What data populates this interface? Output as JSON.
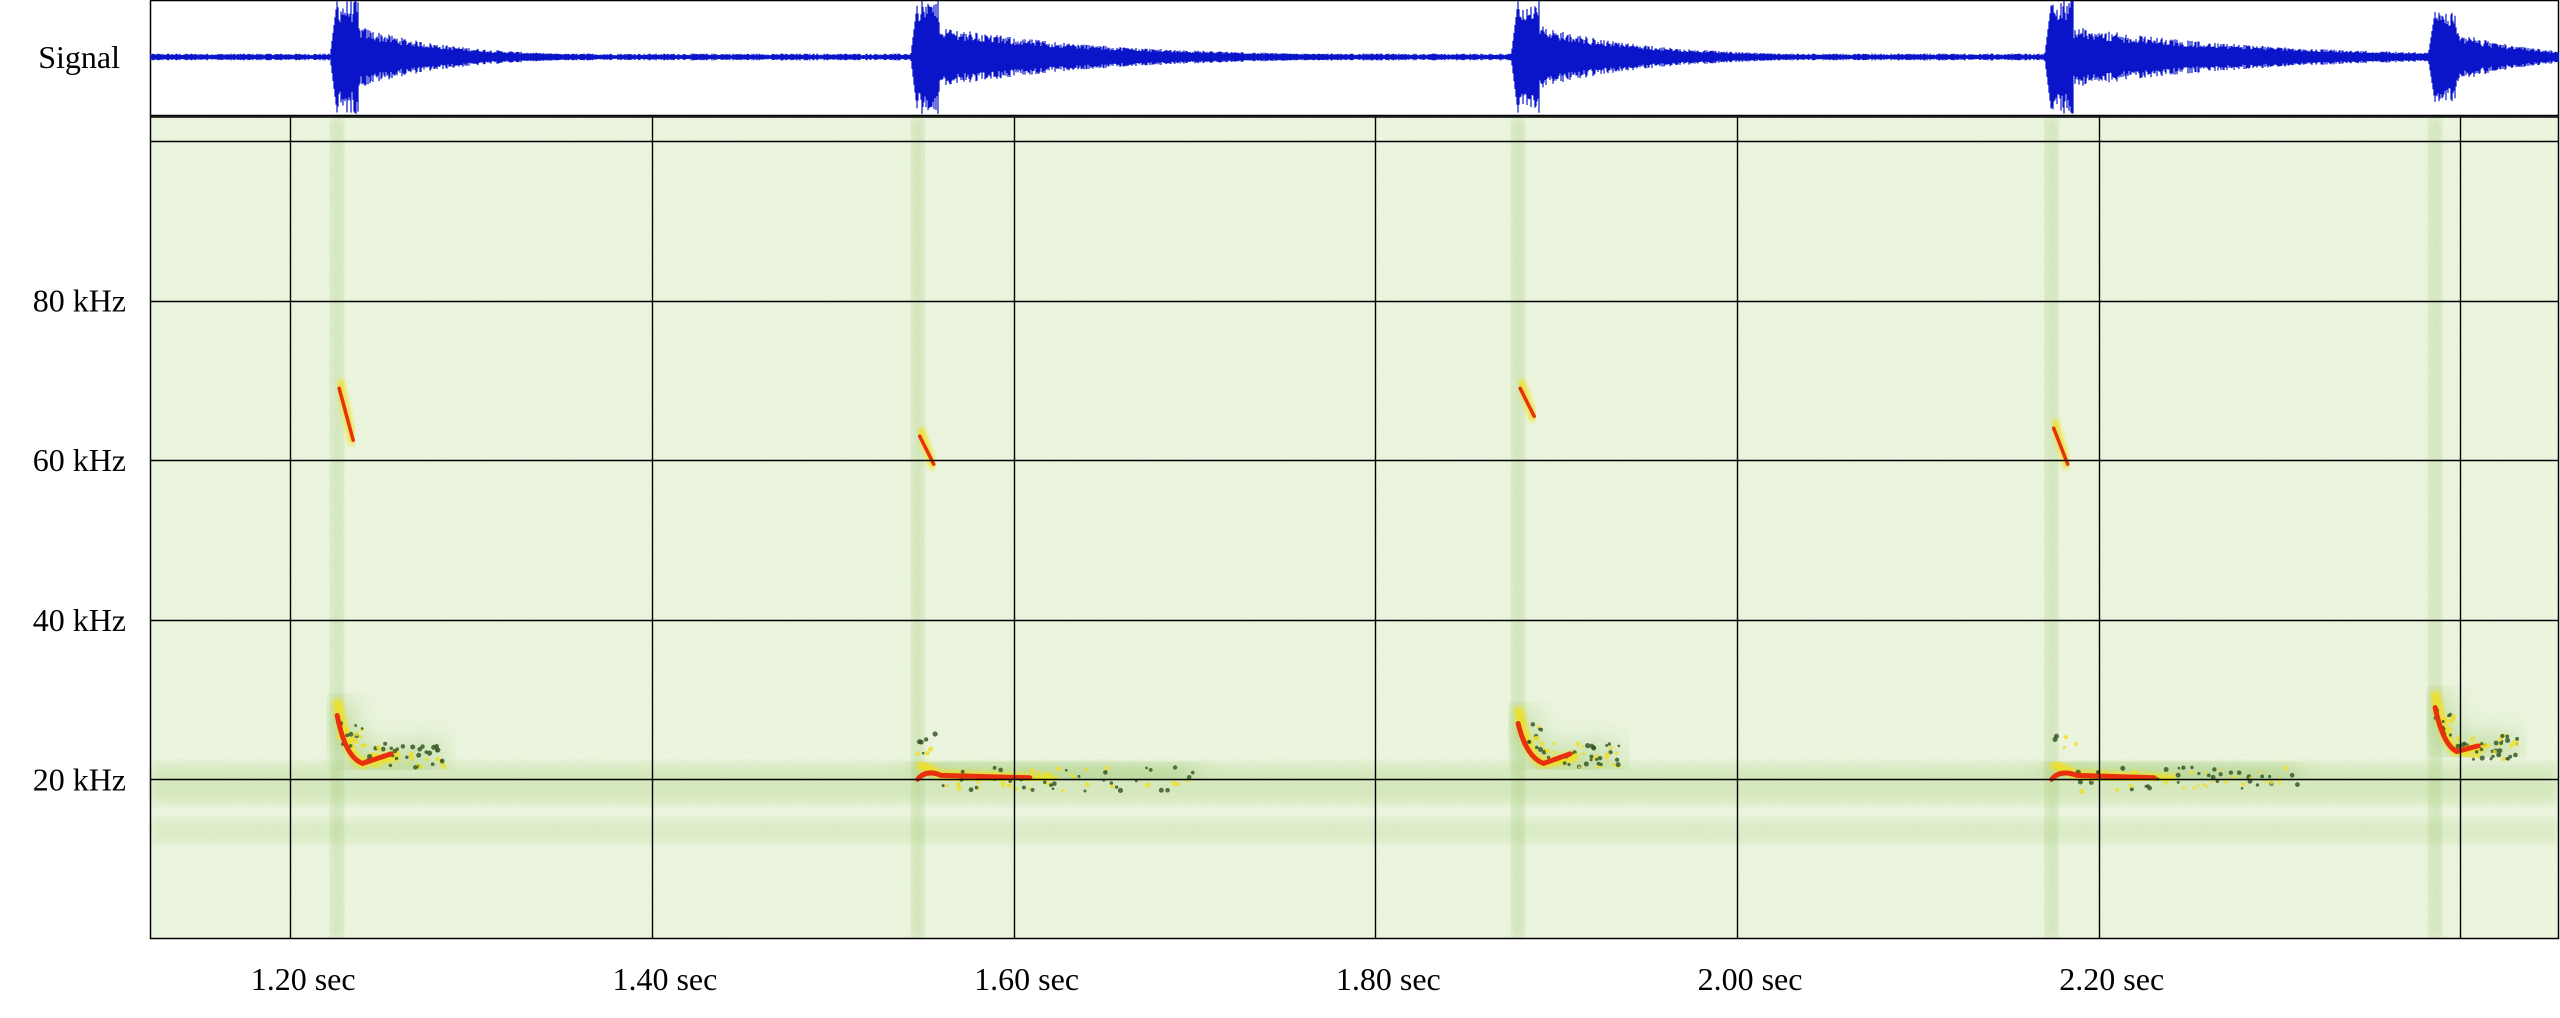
{
  "chart_data": [
    {
      "type": "line",
      "panel": "waveform",
      "ylabel": "Signal",
      "xlim": [
        1.1225,
        2.4545
      ],
      "bursts": [
        {
          "t": 1.226,
          "amplitude": 1.0,
          "decay": 0.05
        },
        {
          "t": 1.547,
          "amplitude": 1.0,
          "decay": 0.09
        },
        {
          "t": 1.879,
          "amplitude": 1.0,
          "decay": 0.06
        },
        {
          "t": 2.174,
          "amplitude": 1.0,
          "decay": 0.1
        },
        {
          "t": 2.386,
          "amplitude": 0.8,
          "decay": 0.04
        }
      ],
      "colors": {
        "line": "#0a14c8",
        "border": "#2030a0"
      }
    },
    {
      "type": "heatmap",
      "panel": "spectrogram",
      "xlim": [
        1.1225,
        2.4545
      ],
      "ylim": [
        0,
        103
      ],
      "x_ticks": [
        {
          "value": 1.2,
          "label": "1.20 sec"
        },
        {
          "value": 1.4,
          "label": "1.40 sec"
        },
        {
          "value": 1.6,
          "label": "1.60 sec"
        },
        {
          "value": 1.8,
          "label": "1.80 sec"
        },
        {
          "value": 2.0,
          "label": "2.00 sec"
        },
        {
          "value": 2.2,
          "label": "2.20 sec"
        }
      ],
      "x_gridlines": [
        1.2,
        1.4,
        1.6,
        1.8,
        2.0,
        2.2,
        2.4
      ],
      "y_ticks": [
        {
          "value": 20,
          "label": "20 kHz"
        },
        {
          "value": 40,
          "label": "40 kHz"
        },
        {
          "value": 60,
          "label": "60 kHz"
        },
        {
          "value": 80,
          "label": "80 kHz"
        }
      ],
      "y_gridlines": [
        20,
        40,
        60,
        80,
        100
      ],
      "grid": true,
      "calls": [
        {
          "t_start": 1.226,
          "f_start": 30,
          "f_end": 22,
          "t_end": 1.24,
          "tail_end": 1.285,
          "tail_f": 23,
          "harmonic": [
            70,
            62
          ]
        },
        {
          "t_start": 1.547,
          "f_start": 22,
          "f_end": 20.5,
          "t_end": 1.56,
          "tail_end": 1.7,
          "tail_f": 20,
          "harmonic": [
            64,
            59
          ]
        },
        {
          "t_start": 1.879,
          "f_start": 29,
          "f_end": 22,
          "t_end": 1.893,
          "tail_end": 1.935,
          "tail_f": 23,
          "harmonic": [
            70,
            65
          ]
        },
        {
          "t_start": 2.174,
          "f_start": 22,
          "f_end": 20.5,
          "t_end": 2.188,
          "tail_end": 2.31,
          "tail_f": 20,
          "harmonic": [
            65,
            59
          ]
        },
        {
          "t_start": 2.386,
          "f_start": 31,
          "f_end": 23.5,
          "t_end": 2.398,
          "tail_end": 2.432,
          "tail_f": 24,
          "harmonic": []
        }
      ],
      "colors": {
        "background": "#eef6e2",
        "mid": "#8fbf5e",
        "low": "#c8e0a8",
        "hot": "#f0e020",
        "peak": "#e83010",
        "dark": "#305020",
        "grid": "#000000"
      }
    }
  ]
}
